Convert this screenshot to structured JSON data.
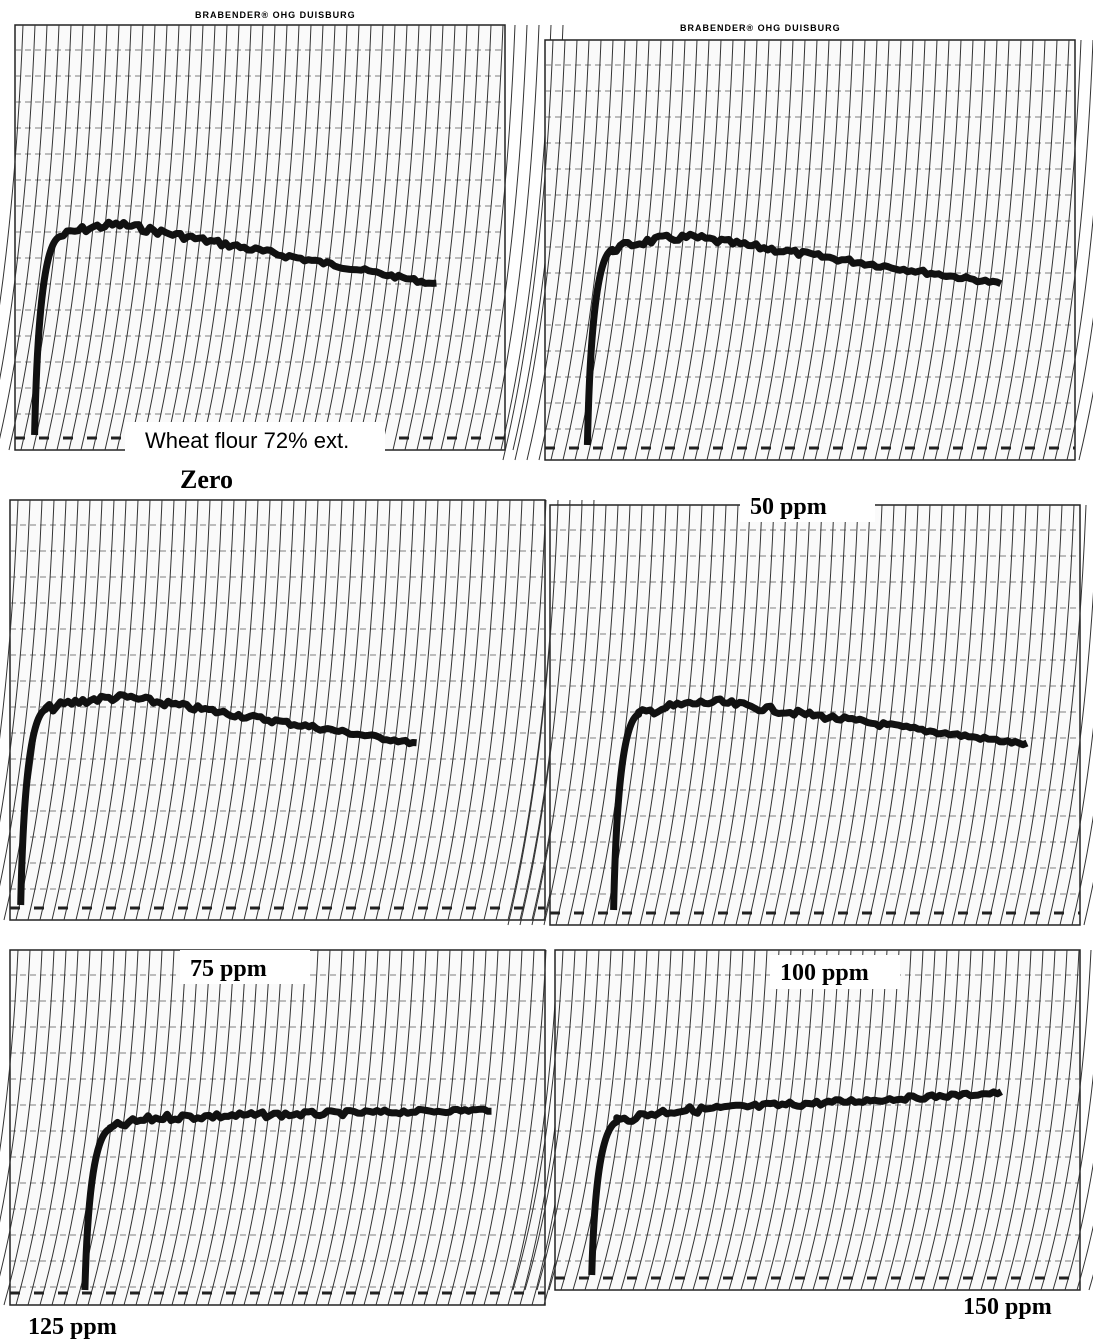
{
  "figure": {
    "caption": "Wheat flour 72% ext.",
    "chart_header": "BRABENDER® OHG DUISBURG",
    "panels": [
      {
        "label": "Zero"
      },
      {
        "label": "50 ppm"
      },
      {
        "label": "75 ppm"
      },
      {
        "label": "100 ppm"
      },
      {
        "label": "125 ppm"
      },
      {
        "label": "150 ppm"
      }
    ]
  }
}
